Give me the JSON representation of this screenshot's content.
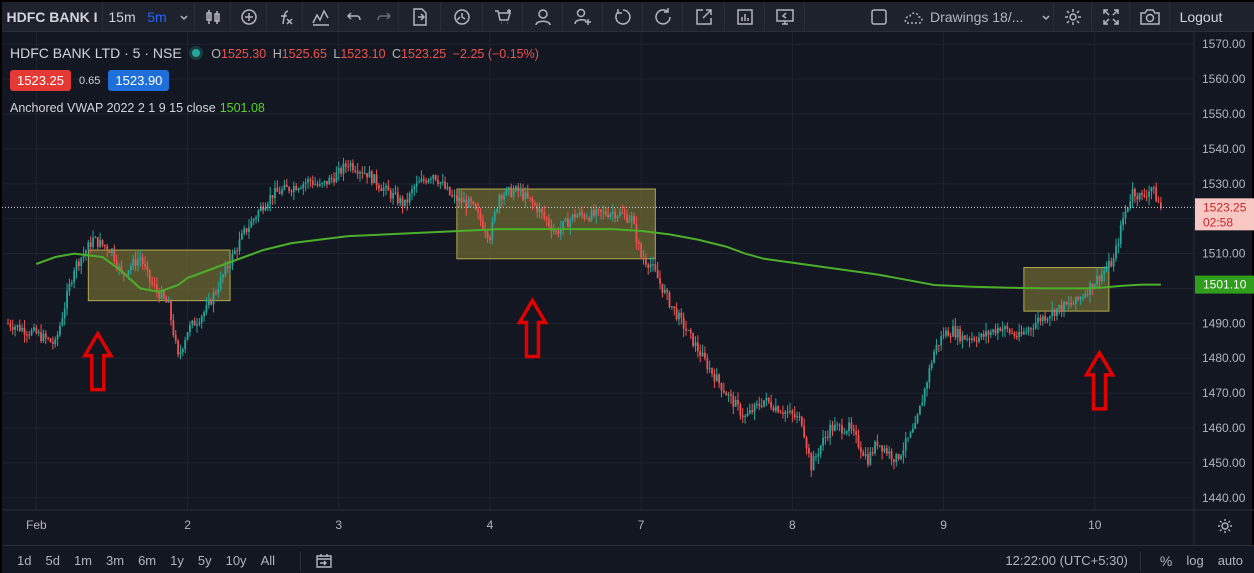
{
  "toolbar": {
    "symbol": "HDFC BANK I",
    "interval_1": "15m",
    "interval_2": "5m",
    "drawings_label": "Drawings 18/...",
    "logout": "Logout"
  },
  "legend": {
    "symbol_title": "HDFC BANK LTD · 5 · NSE",
    "ohlc": {
      "o_key": "O",
      "o": "1525.30",
      "h_key": "H",
      "h": "1525.65",
      "l_key": "L",
      "l": "1523.10",
      "c_key": "C",
      "c": "1523.25",
      "change": "−2.25 (−0.15%)"
    },
    "sell_price": "1523.25",
    "spread": "0.65",
    "buy_price": "1523.90",
    "indicator_name": "Anchored VWAP 2022 2 1 9 15 close",
    "indicator_value": "1501.08"
  },
  "price_axis": {
    "ticks": [
      "1570.00",
      "1560.00",
      "1550.00",
      "1540.00",
      "1530.00",
      "1520.00",
      "1510.00",
      "1500.00",
      "1490.00",
      "1480.00",
      "1470.00",
      "1460.00",
      "1450.00",
      "1440.00"
    ],
    "last_price_label": "1523.25",
    "countdown": "02:58",
    "vwap_label": "1501.10"
  },
  "time_axis": {
    "ticks": [
      "Feb",
      "2",
      "3",
      "4",
      "7",
      "8",
      "9",
      "10"
    ]
  },
  "bottom_bar": {
    "ranges": [
      "1d",
      "5d",
      "1m",
      "3m",
      "6m",
      "1y",
      "5y",
      "10y",
      "All"
    ],
    "clock": "12:22:00 (UTC+5:30)",
    "percent": "%",
    "log": "log",
    "auto": "auto"
  },
  "colors": {
    "up": "#26a69a",
    "down": "#ef5350",
    "vwap": "#4caf2a",
    "zone": "#8d8339",
    "arrow": "#e00000",
    "sell": "#e53935",
    "buy": "#1e6fd9"
  },
  "chart_data": {
    "type": "candlestick",
    "y_range": [
      1436.5,
      1573.5
    ],
    "x_labels": [
      "Feb",
      "2",
      "3",
      "4",
      "7",
      "8",
      "9",
      "10"
    ],
    "price_path": [
      [
        0,
        1490
      ],
      [
        3,
        1487
      ],
      [
        5,
        1484
      ],
      [
        7,
        1506
      ],
      [
        9,
        1514
      ],
      [
        11,
        1511
      ],
      [
        12,
        1504
      ],
      [
        14,
        1509
      ],
      [
        15,
        1502
      ],
      [
        17,
        1495
      ],
      [
        18,
        1480
      ],
      [
        19,
        1488
      ],
      [
        21,
        1494
      ],
      [
        23,
        1505
      ],
      [
        25,
        1516
      ],
      [
        27,
        1524
      ],
      [
        28,
        1527
      ],
      [
        30,
        1529
      ],
      [
        32,
        1531
      ],
      [
        33,
        1529
      ],
      [
        35,
        1533
      ],
      [
        36,
        1536
      ],
      [
        38,
        1533
      ],
      [
        40,
        1528
      ],
      [
        42,
        1524
      ],
      [
        43,
        1529
      ],
      [
        45,
        1533
      ],
      [
        47,
        1526
      ],
      [
        49,
        1524
      ],
      [
        51,
        1515
      ],
      [
        52,
        1527
      ],
      [
        54,
        1528
      ],
      [
        56,
        1523
      ],
      [
        58,
        1516
      ],
      [
        60,
        1521
      ],
      [
        62,
        1521
      ],
      [
        64,
        1522
      ],
      [
        66,
        1520
      ],
      [
        67,
        1509
      ],
      [
        68,
        1507
      ],
      [
        70,
        1496
      ],
      [
        72,
        1487
      ],
      [
        74,
        1478
      ],
      [
        76,
        1470
      ],
      [
        78,
        1463
      ],
      [
        80,
        1468
      ],
      [
        82,
        1465
      ],
      [
        84,
        1462
      ],
      [
        85,
        1449
      ],
      [
        86,
        1455
      ],
      [
        87,
        1460
      ],
      [
        89,
        1460
      ],
      [
        91,
        1451
      ],
      [
        92,
        1456
      ],
      [
        94,
        1451
      ],
      [
        96,
        1460
      ],
      [
        97,
        1471
      ],
      [
        98,
        1482
      ],
      [
        99,
        1487
      ],
      [
        100,
        1488
      ],
      [
        101,
        1486
      ],
      [
        103,
        1486
      ],
      [
        105,
        1489
      ],
      [
        107,
        1486
      ],
      [
        109,
        1491
      ],
      [
        111,
        1494
      ],
      [
        113,
        1496
      ],
      [
        115,
        1502
      ],
      [
        117,
        1508
      ],
      [
        118,
        1520
      ],
      [
        119,
        1528
      ],
      [
        120,
        1526
      ],
      [
        121,
        1529
      ],
      [
        122,
        1523
      ]
    ],
    "vwap_path": [
      [
        3,
        1507
      ],
      [
        5,
        1509
      ],
      [
        7,
        1510
      ],
      [
        10,
        1509
      ],
      [
        12,
        1505
      ],
      [
        14,
        1500
      ],
      [
        16,
        1499
      ],
      [
        18,
        1501
      ],
      [
        19,
        1503
      ],
      [
        21,
        1505
      ],
      [
        23,
        1507
      ],
      [
        25,
        1509
      ],
      [
        27,
        1511
      ],
      [
        30,
        1513
      ],
      [
        33,
        1514
      ],
      [
        36,
        1515
      ],
      [
        40,
        1515.5
      ],
      [
        44,
        1516
      ],
      [
        48,
        1516.5
      ],
      [
        52,
        1517
      ],
      [
        56,
        1517
      ],
      [
        60,
        1517
      ],
      [
        64,
        1517
      ],
      [
        67,
        1516.5
      ],
      [
        70,
        1515.5
      ],
      [
        73,
        1514
      ],
      [
        76,
        1512
      ],
      [
        78,
        1510
      ],
      [
        80,
        1508.5
      ],
      [
        84,
        1507
      ],
      [
        88,
        1505.5
      ],
      [
        92,
        1504
      ],
      [
        95,
        1502.5
      ],
      [
        98,
        1501
      ],
      [
        102,
        1500.5
      ],
      [
        106,
        1500.2
      ],
      [
        110,
        1500
      ],
      [
        114,
        1500
      ],
      [
        116,
        1500.3
      ],
      [
        118,
        1500.8
      ],
      [
        120,
        1501.1
      ],
      [
        122,
        1501.1
      ]
    ],
    "last_price": 1523.25,
    "vwap_last": 1501.1
  }
}
